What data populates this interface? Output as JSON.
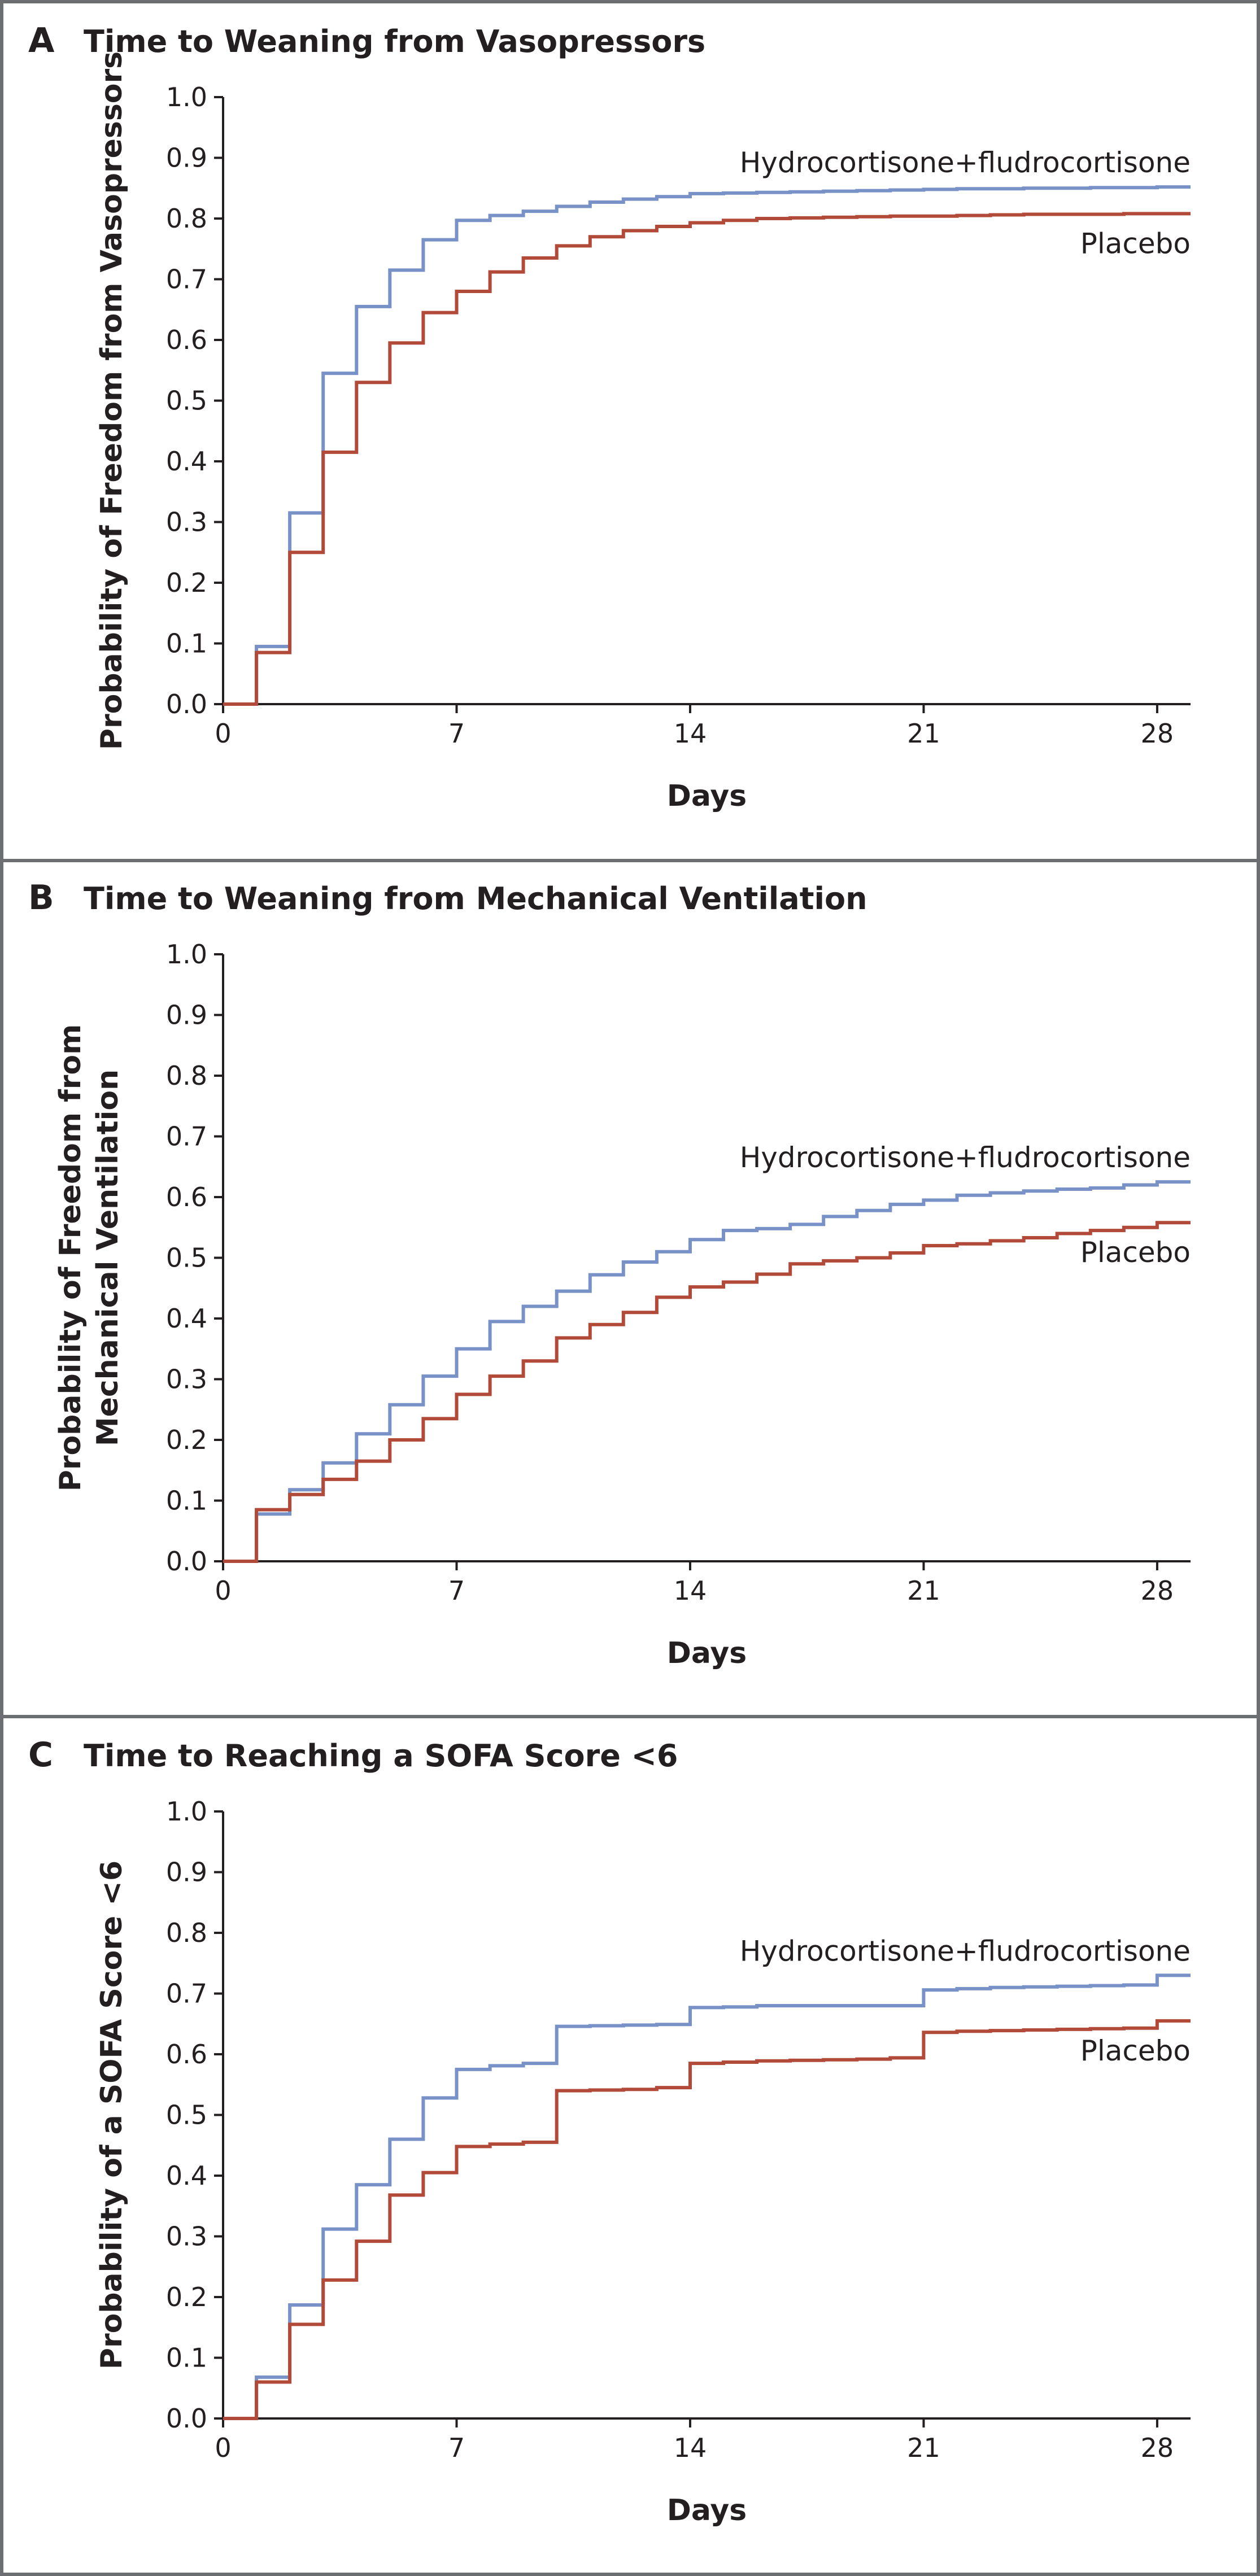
{
  "colors": {
    "hydrocortisone": "#7891c6",
    "placebo": "#b24a3a",
    "border": "#6d6e71",
    "text": "#231f20"
  },
  "chart_data": [
    {
      "type": "line",
      "step": "post",
      "panel_letter": "A",
      "title": "Time to Weaning from Vasopressors",
      "xlabel": "Days",
      "ylabel_lines": [
        "Probability of Freedom from Vasopressors"
      ],
      "xlim": [
        0,
        29
      ],
      "ylim": [
        0,
        1
      ],
      "xticks": [
        0,
        7,
        14,
        21,
        28
      ],
      "yticks": [
        0.0,
        0.1,
        0.2,
        0.3,
        0.4,
        0.5,
        0.6,
        0.7,
        0.8,
        0.9,
        1.0
      ],
      "xtick_labels": [
        "0",
        "7",
        "14",
        "21",
        "28"
      ],
      "ytick_labels": [
        "0.0",
        "0.1",
        "0.2",
        "0.3",
        "0.4",
        "0.5",
        "0.6",
        "0.7",
        "0.8",
        "0.9",
        "1.0"
      ],
      "series": [
        {
          "name": "Hydrocortisone+fludrocortisone",
          "color": "#7891c6",
          "x": [
            0,
            1,
            2,
            3,
            4,
            5,
            6,
            7,
            8,
            9,
            10,
            11,
            12,
            13,
            14,
            15,
            16,
            17,
            18,
            19,
            20,
            21,
            22,
            23,
            24,
            25,
            26,
            27,
            28,
            29
          ],
          "y": [
            0,
            0.095,
            0.315,
            0.545,
            0.655,
            0.715,
            0.765,
            0.797,
            0.805,
            0.812,
            0.82,
            0.827,
            0.832,
            0.836,
            0.841,
            0.842,
            0.843,
            0.844,
            0.845,
            0.846,
            0.847,
            0.848,
            0.849,
            0.849,
            0.85,
            0.85,
            0.851,
            0.851,
            0.852,
            0.852
          ]
        },
        {
          "name": "Placebo",
          "color": "#b24a3a",
          "x": [
            0,
            1,
            2,
            3,
            4,
            5,
            6,
            7,
            8,
            9,
            10,
            11,
            12,
            13,
            14,
            15,
            16,
            17,
            18,
            19,
            20,
            21,
            22,
            23,
            24,
            25,
            26,
            27,
            28,
            29
          ],
          "y": [
            0,
            0.085,
            0.25,
            0.415,
            0.53,
            0.595,
            0.645,
            0.68,
            0.712,
            0.735,
            0.755,
            0.77,
            0.78,
            0.787,
            0.793,
            0.797,
            0.8,
            0.801,
            0.802,
            0.803,
            0.804,
            0.804,
            0.805,
            0.806,
            0.807,
            0.807,
            0.807,
            0.808,
            0.808,
            0.808
          ]
        }
      ]
    },
    {
      "type": "line",
      "step": "post",
      "panel_letter": "B",
      "title": "Time to Weaning from Mechanical Ventilation",
      "xlabel": "Days",
      "ylabel_lines": [
        "Probability of Freedom from",
        "Mechanical Ventilation"
      ],
      "xlim": [
        0,
        29
      ],
      "ylim": [
        0,
        1
      ],
      "xticks": [
        0,
        7,
        14,
        21,
        28
      ],
      "yticks": [
        0.0,
        0.1,
        0.2,
        0.3,
        0.4,
        0.5,
        0.6,
        0.7,
        0.8,
        0.9,
        1.0
      ],
      "xtick_labels": [
        "0",
        "7",
        "14",
        "21",
        "28"
      ],
      "ytick_labels": [
        "0.0",
        "0.1",
        "0.2",
        "0.3",
        "0.4",
        "0.5",
        "0.6",
        "0.7",
        "0.8",
        "0.9",
        "1.0"
      ],
      "series": [
        {
          "name": "Hydrocortisone+fludrocortisone",
          "color": "#7891c6",
          "x": [
            0,
            1,
            2,
            3,
            4,
            5,
            6,
            7,
            8,
            9,
            10,
            11,
            12,
            13,
            14,
            15,
            16,
            17,
            18,
            19,
            20,
            21,
            22,
            23,
            24,
            25,
            26,
            27,
            28,
            29
          ],
          "y": [
            0,
            0.078,
            0.118,
            0.162,
            0.21,
            0.258,
            0.305,
            0.35,
            0.395,
            0.42,
            0.445,
            0.472,
            0.493,
            0.51,
            0.53,
            0.545,
            0.548,
            0.555,
            0.568,
            0.578,
            0.588,
            0.595,
            0.603,
            0.607,
            0.61,
            0.613,
            0.615,
            0.62,
            0.625,
            0.625
          ]
        },
        {
          "name": "Placebo",
          "color": "#b24a3a",
          "x": [
            0,
            1,
            2,
            3,
            4,
            5,
            6,
            7,
            8,
            9,
            10,
            11,
            12,
            13,
            14,
            15,
            16,
            17,
            18,
            19,
            20,
            21,
            22,
            23,
            24,
            25,
            26,
            27,
            28,
            29
          ],
          "y": [
            0,
            0.085,
            0.11,
            0.135,
            0.165,
            0.2,
            0.235,
            0.275,
            0.305,
            0.33,
            0.368,
            0.39,
            0.41,
            0.435,
            0.452,
            0.46,
            0.473,
            0.49,
            0.495,
            0.5,
            0.508,
            0.52,
            0.523,
            0.528,
            0.533,
            0.54,
            0.545,
            0.55,
            0.558,
            0.558
          ]
        }
      ]
    },
    {
      "type": "line",
      "step": "post",
      "panel_letter": "C",
      "title": "Time to Reaching a SOFA Score <6",
      "xlabel": "Days",
      "ylabel_lines": [
        "Probability of a SOFA Score <6"
      ],
      "xlim": [
        0,
        29
      ],
      "ylim": [
        0,
        1
      ],
      "xticks": [
        0,
        7,
        14,
        21,
        28
      ],
      "yticks": [
        0.0,
        0.1,
        0.2,
        0.3,
        0.4,
        0.5,
        0.6,
        0.7,
        0.8,
        0.9,
        1.0
      ],
      "xtick_labels": [
        "0",
        "7",
        "14",
        "21",
        "28"
      ],
      "ytick_labels": [
        "0.0",
        "0.1",
        "0.2",
        "0.3",
        "0.4",
        "0.5",
        "0.6",
        "0.7",
        "0.8",
        "0.9",
        "1.0"
      ],
      "series": [
        {
          "name": "Hydrocortisone+fludrocortisone",
          "color": "#7891c6",
          "x": [
            0,
            1,
            2,
            3,
            4,
            5,
            6,
            7,
            8,
            9,
            10,
            11,
            12,
            13,
            14,
            15,
            16,
            17,
            18,
            19,
            20,
            21,
            22,
            23,
            24,
            25,
            26,
            27,
            28,
            29
          ],
          "y": [
            0,
            0.068,
            0.187,
            0.312,
            0.385,
            0.46,
            0.528,
            0.575,
            0.581,
            0.585,
            0.646,
            0.647,
            0.648,
            0.649,
            0.677,
            0.678,
            0.68,
            0.68,
            0.68,
            0.68,
            0.68,
            0.706,
            0.708,
            0.71,
            0.711,
            0.712,
            0.713,
            0.714,
            0.73,
            0.73
          ]
        },
        {
          "name": "Placebo",
          "color": "#b24a3a",
          "x": [
            0,
            1,
            2,
            3,
            4,
            5,
            6,
            7,
            8,
            9,
            10,
            11,
            12,
            13,
            14,
            15,
            16,
            17,
            18,
            19,
            20,
            21,
            22,
            23,
            24,
            25,
            26,
            27,
            28,
            29
          ],
          "y": [
            0,
            0.06,
            0.155,
            0.228,
            0.292,
            0.368,
            0.405,
            0.448,
            0.452,
            0.455,
            0.54,
            0.541,
            0.542,
            0.545,
            0.585,
            0.587,
            0.589,
            0.59,
            0.591,
            0.592,
            0.594,
            0.636,
            0.638,
            0.639,
            0.64,
            0.641,
            0.642,
            0.643,
            0.655,
            0.655
          ]
        }
      ]
    }
  ]
}
